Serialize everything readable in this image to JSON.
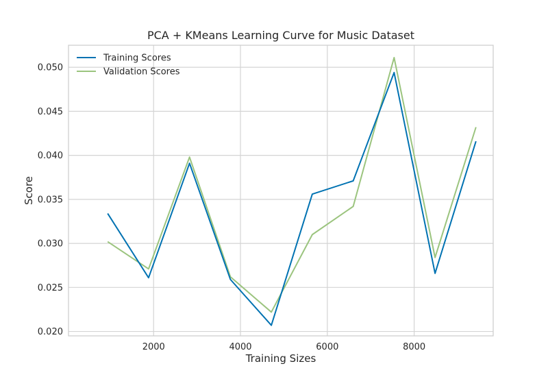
{
  "chart_data": {
    "type": "line",
    "title": "PCA + KMeans Learning Curve for Music Dataset",
    "xlabel": "Training Sizes",
    "ylabel": "Score",
    "xlim": [
      40,
      9820
    ],
    "ylim": [
      0.0195,
      0.0525
    ],
    "xticks": [
      2000,
      4000,
      6000,
      8000
    ],
    "yticks": [
      0.02,
      0.025,
      0.03,
      0.035,
      0.04,
      0.045,
      0.05
    ],
    "x": [
      942,
      1884,
      2827,
      3769,
      4711,
      5654,
      6596,
      7538,
      8481,
      9423
    ],
    "grid": true,
    "legend_position": "top-left",
    "series": [
      {
        "name": "Training Scores",
        "color": "#0072B2",
        "values": [
          0.0334,
          0.0261,
          0.0391,
          0.0259,
          0.0207,
          0.0356,
          0.0371,
          0.0494,
          0.0266,
          0.0416
        ]
      },
      {
        "name": "Validation Scores",
        "color": "#9BC47E",
        "values": [
          0.0302,
          0.0271,
          0.0398,
          0.0262,
          0.0222,
          0.031,
          0.0342,
          0.0511,
          0.0284,
          0.0432
        ]
      }
    ]
  }
}
